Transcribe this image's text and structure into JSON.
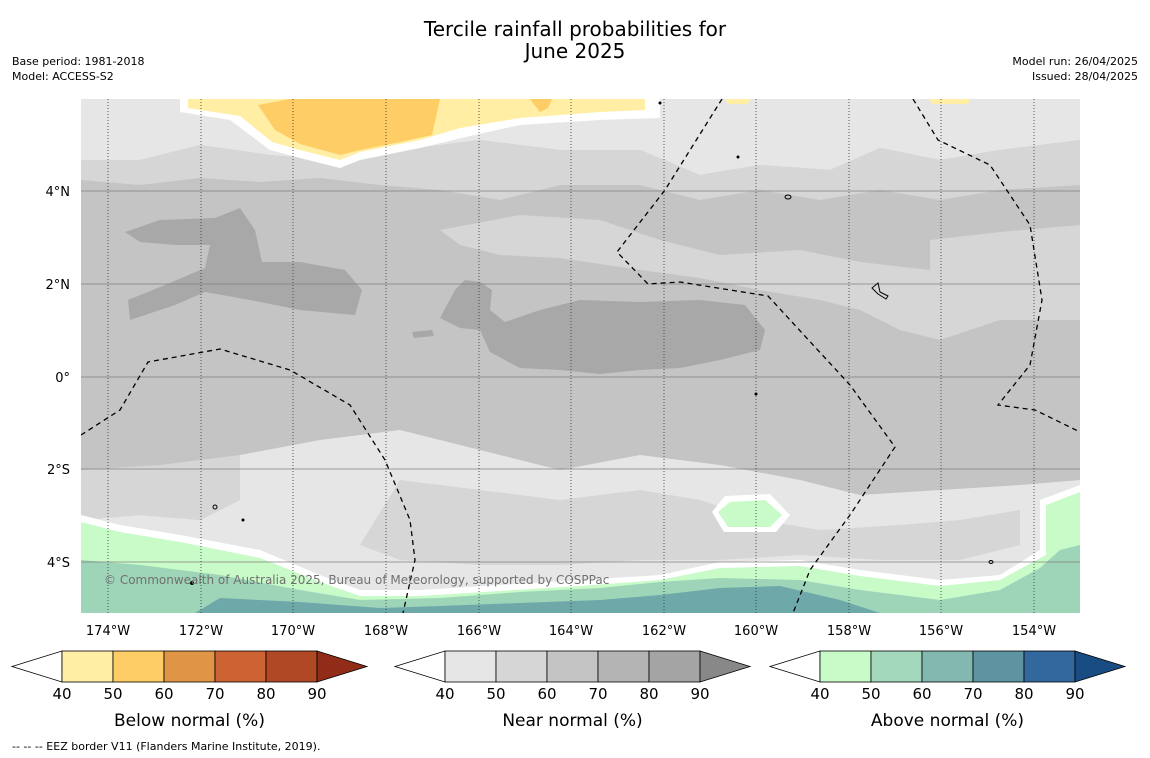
{
  "title": {
    "line1": "Tercile rainfall probabilities for",
    "line2": "June 2025"
  },
  "meta": {
    "base_period": "Base period: 1981-2018",
    "model": "Model: ACCESS-S2",
    "model_run": "Model run: 26/04/2025",
    "issued": "Issued: 28/04/2025"
  },
  "map": {
    "lat_labels": [
      "4°N",
      "2°N",
      "0°",
      "2°S",
      "4°S"
    ],
    "lon_labels": [
      "174°W",
      "172°W",
      "170°W",
      "168°W",
      "166°W",
      "164°W",
      "162°W",
      "160°W",
      "158°W",
      "156°W",
      "154°W"
    ],
    "copyright": "© Commonwealth of Australia 2025, Bureau of Meteorology, supported by COSPPac",
    "colors": {
      "near_40": "#e6e6e6",
      "near_50": "#d6d6d6",
      "near_60": "#c4c4c4",
      "near_70": "#a8a8a8",
      "below_40": "#ffeea4",
      "below_50": "#fecd65",
      "above_40": "#c8fbc8",
      "above_50": "#9ed4b8",
      "above_60": "#6ea8a8"
    }
  },
  "colorbars": [
    {
      "title": "Below normal (%)",
      "ticks": [
        "40",
        "50",
        "60",
        "70",
        "80",
        "90"
      ],
      "colors": [
        "#ffeea4",
        "#fecd65",
        "#e09446",
        "#cd6232",
        "#b04826",
        "#902c18"
      ]
    },
    {
      "title": "Near normal (%)",
      "ticks": [
        "40",
        "50",
        "60",
        "70",
        "80",
        "90"
      ],
      "colors": [
        "#e6e6e6",
        "#d6d6d6",
        "#c4c4c4",
        "#b4b4b4",
        "#a4a4a4",
        "#888888"
      ]
    },
    {
      "title": "Above normal (%)",
      "ticks": [
        "40",
        "50",
        "60",
        "70",
        "80",
        "90"
      ],
      "colors": [
        "#c8fbc8",
        "#a4d8bc",
        "#82b8b0",
        "#5e94a2",
        "#32689e",
        "#1a4c84"
      ]
    }
  ],
  "footer": "-- -- -- EEZ border V11 (Flanders Marine Institute, 2019)."
}
